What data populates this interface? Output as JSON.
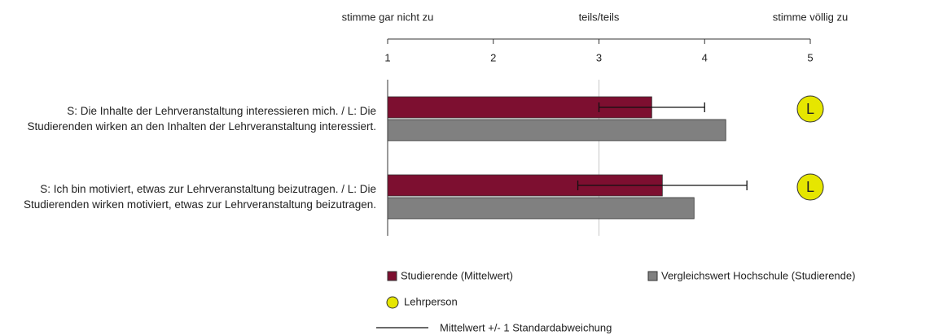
{
  "chart_data": {
    "type": "bar",
    "orientation": "horizontal",
    "scale_labels": [
      {
        "value": 1,
        "label": "stimme gar nicht zu"
      },
      {
        "value": 3,
        "label": "teils/teils"
      },
      {
        "value": 5,
        "label": "stimme völlig zu"
      }
    ],
    "categories": [
      "S: Die Inhalte der Lehrveranstaltung interessieren mich. / L: Die Studierenden wirken an den Inhalten der Lehrveranstaltung interessiert.",
      "S: Ich bin motiviert, etwas zur Lehrveranstaltung beizutragen. / L: Die Studierenden wirken motiviert, etwas zur Lehrveranstaltung beizutragen."
    ],
    "series": [
      {
        "name": "Studierende (Mittelwert)",
        "color": "#7d0f30",
        "values": [
          3.5,
          3.6
        ],
        "errors": [
          0.5,
          0.8
        ]
      },
      {
        "name": "Vergleichswert Hochschule (Studierende)",
        "color": "#808080",
        "values": [
          4.2,
          3.9
        ]
      },
      {
        "name": "Lehrperson",
        "color": "#e6e600",
        "marker_text": "L",
        "values": [
          5,
          5
        ]
      }
    ],
    "error_legend": "Mittelwert +/- 1 Standardabweichung",
    "xlim": [
      1,
      5
    ],
    "xticks": [
      1,
      2,
      3,
      4,
      5
    ],
    "reference_line": 3
  }
}
